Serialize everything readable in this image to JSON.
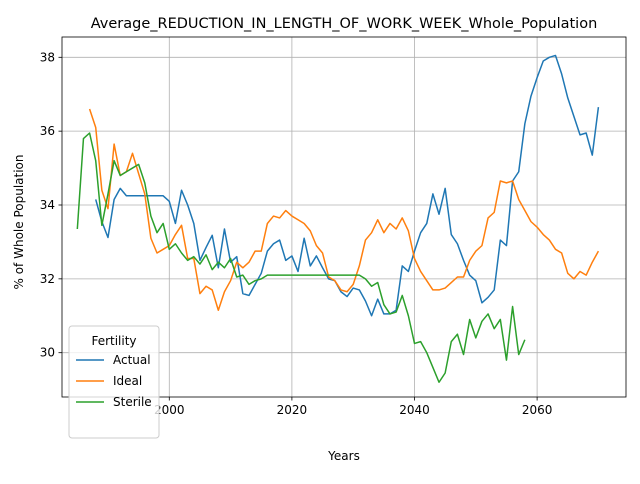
{
  "chart_data": {
    "type": "line",
    "title": "Average_REDUCTION_IN_LENGTH_OF_WORK_WEEK_Whole_Population",
    "xlabel": "Years",
    "ylabel": "% of Whole Population",
    "xlim": [
      1982.5,
      2074.5
    ],
    "ylim": [
      28.8,
      38.55
    ],
    "xticks": [
      2000,
      2020,
      2040,
      2060
    ],
    "yticks": [
      30,
      32,
      34,
      36,
      38
    ],
    "grid": true,
    "legend": {
      "title": "Fertility",
      "placement": "lower-left"
    },
    "series": [
      {
        "name": "Actual",
        "color": "#1f77b4",
        "x": [
          1988,
          1989,
          1990,
          1991,
          1992,
          1993,
          1994,
          1995,
          1996,
          1997,
          1998,
          1999,
          2000,
          2001,
          2002,
          2003,
          2004,
          2005,
          2006,
          2007,
          2008,
          2009,
          2010,
          2011,
          2012,
          2013,
          2014,
          2015,
          2016,
          2017,
          2018,
          2019,
          2020,
          2021,
          2022,
          2023,
          2024,
          2025,
          2026,
          2027,
          2028,
          2029,
          2030,
          2031,
          2032,
          2033,
          2034,
          2035,
          2036,
          2037,
          2038,
          2039,
          2040,
          2041,
          2042,
          2043,
          2044,
          2045,
          2046,
          2047,
          2048,
          2049,
          2050,
          2051,
          2052,
          2053,
          2054,
          2055,
          2056,
          2057,
          2058,
          2059,
          2060,
          2061,
          2062,
          2063,
          2064,
          2065,
          2066,
          2067,
          2068,
          2069,
          2070
        ],
        "values": [
          34.15,
          33.55,
          33.12,
          34.15,
          34.45,
          34.25,
          34.25,
          34.25,
          34.25,
          34.25,
          34.25,
          34.25,
          34.1,
          33.5,
          34.4,
          34.0,
          33.5,
          32.5,
          32.85,
          33.18,
          32.3,
          33.35,
          32.45,
          32.6,
          31.6,
          31.55,
          31.85,
          32.15,
          32.75,
          32.95,
          33.05,
          32.5,
          32.62,
          32.2,
          33.1,
          32.35,
          32.62,
          32.3,
          32.0,
          31.95,
          31.65,
          31.52,
          31.75,
          31.7,
          31.4,
          31.0,
          31.45,
          31.05,
          31.05,
          31.15,
          32.35,
          32.2,
          32.75,
          33.25,
          33.5,
          34.3,
          33.75,
          34.45,
          33.2,
          32.95,
          32.5,
          32.1,
          31.95,
          31.35,
          31.5,
          31.7,
          33.05,
          32.9,
          34.65,
          34.9,
          36.2,
          36.95,
          37.45,
          37.9,
          38.0,
          38.05,
          37.55,
          36.9,
          36.4,
          35.9,
          35.95,
          35.35,
          36.65
        ]
      },
      {
        "name": "Ideal",
        "color": "#ff7f0e",
        "x": [
          1987,
          1988,
          1989,
          1990,
          1991,
          1992,
          1993,
          1994,
          1995,
          1996,
          1997,
          1998,
          1999,
          2000,
          2001,
          2002,
          2003,
          2004,
          2005,
          2006,
          2007,
          2008,
          2009,
          2010,
          2011,
          2012,
          2013,
          2014,
          2015,
          2016,
          2017,
          2018,
          2019,
          2020,
          2021,
          2022,
          2023,
          2024,
          2025,
          2026,
          2027,
          2028,
          2029,
          2030,
          2031,
          2032,
          2033,
          2034,
          2035,
          2036,
          2037,
          2038,
          2039,
          2040,
          2041,
          2042,
          2043,
          2044,
          2045,
          2046,
          2047,
          2048,
          2049,
          2050,
          2051,
          2052,
          2053,
          2054,
          2055,
          2056,
          2057,
          2058,
          2059,
          2060,
          2061,
          2062,
          2063,
          2064,
          2065,
          2066,
          2067,
          2068,
          2069,
          2070
        ],
        "values": [
          36.6,
          36.1,
          34.4,
          33.9,
          35.65,
          34.8,
          34.9,
          35.4,
          34.85,
          34.3,
          33.1,
          32.7,
          32.8,
          32.9,
          33.2,
          33.45,
          32.55,
          32.55,
          31.6,
          31.8,
          31.7,
          31.15,
          31.65,
          31.95,
          32.45,
          32.3,
          32.45,
          32.75,
          32.75,
          33.5,
          33.7,
          33.65,
          33.85,
          33.7,
          33.6,
          33.5,
          33.3,
          32.9,
          32.7,
          32.05,
          31.95,
          31.7,
          31.65,
          31.85,
          32.35,
          33.05,
          33.25,
          33.6,
          33.25,
          33.5,
          33.35,
          33.65,
          33.3,
          32.55,
          32.2,
          31.95,
          31.7,
          31.7,
          31.75,
          31.9,
          32.05,
          32.05,
          32.5,
          32.75,
          32.9,
          33.65,
          33.8,
          34.65,
          34.6,
          34.65,
          34.15,
          33.85,
          33.55,
          33.4,
          33.2,
          33.05,
          32.8,
          32.7,
          32.15,
          32.0,
          32.2,
          32.1,
          32.45,
          32.75
        ]
      },
      {
        "name": "Sterile",
        "color": "#2ca02c",
        "x": [
          1985,
          1986,
          1987,
          1988,
          1989,
          1990,
          1991,
          1992,
          1993,
          1994,
          1995,
          1996,
          1997,
          1998,
          1999,
          2000,
          2001,
          2002,
          2003,
          2004,
          2005,
          2006,
          2007,
          2008,
          2009,
          2010,
          2011,
          2012,
          2013,
          2014,
          2015,
          2016,
          2017,
          2018,
          2019,
          2020,
          2021,
          2022,
          2023,
          2024,
          2025,
          2026,
          2027,
          2028,
          2029,
          2030,
          2031,
          2032,
          2033,
          2034,
          2035,
          2036,
          2037,
          2038,
          2039,
          2040,
          2041,
          2042,
          2043,
          2044,
          2045,
          2046,
          2047,
          2048,
          2049,
          2050,
          2051,
          2052,
          2053,
          2054,
          2055,
          2056,
          2057,
          2058
        ],
        "values": [
          33.35,
          35.8,
          35.95,
          35.2,
          33.45,
          34.3,
          35.2,
          34.8,
          34.9,
          35.0,
          35.1,
          34.6,
          33.7,
          33.25,
          33.5,
          32.8,
          32.95,
          32.7,
          32.5,
          32.6,
          32.4,
          32.65,
          32.25,
          32.45,
          32.3,
          32.55,
          32.05,
          32.1,
          31.85,
          31.95,
          32.0,
          32.1,
          32.1,
          32.1,
          32.1,
          32.1,
          32.1,
          32.1,
          32.1,
          32.1,
          32.1,
          32.1,
          32.1,
          32.1,
          32.1,
          32.1,
          32.1,
          32.0,
          31.8,
          31.9,
          31.3,
          31.05,
          31.1,
          31.55,
          31.0,
          30.25,
          30.3,
          30.0,
          29.6,
          29.2,
          29.45,
          30.3,
          30.5,
          29.95,
          30.9,
          30.4,
          30.85,
          31.05,
          30.65,
          30.9,
          29.8,
          31.25,
          29.95,
          30.35
        ]
      }
    ]
  }
}
